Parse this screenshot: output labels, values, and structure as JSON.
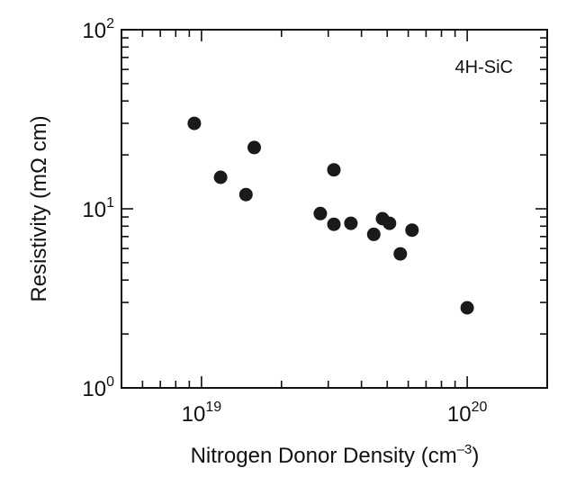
{
  "chart_data": {
    "type": "scatter",
    "xscale": "log",
    "yscale": "log",
    "xlim": [
      5e+18,
      2e+20
    ],
    "ylim": [
      1,
      100
    ],
    "xlabel": "Nitrogen Donor Density (cm",
    "xlabel_sup": "–3",
    "xlabel_close": ")",
    "ylabel": "Resistivity (mΩ cm)",
    "annotation": "4H-SiC",
    "grid": false,
    "x_ticks": [
      {
        "value": 1e+19,
        "base": "10",
        "exp": "19"
      },
      {
        "value": 1e+20,
        "base": "10",
        "exp": "20"
      }
    ],
    "y_ticks": [
      {
        "value": 1,
        "base": "10",
        "exp": "0"
      },
      {
        "value": 10,
        "base": "10",
        "exp": "1"
      },
      {
        "value": 100,
        "base": "10",
        "exp": "2"
      }
    ],
    "points": [
      {
        "x": 9.4e+18,
        "y": 30
      },
      {
        "x": 1.18e+19,
        "y": 15
      },
      {
        "x": 1.47e+19,
        "y": 12
      },
      {
        "x": 1.58e+19,
        "y": 22
      },
      {
        "x": 2.8e+19,
        "y": 9.4
      },
      {
        "x": 3.15e+19,
        "y": 8.2
      },
      {
        "x": 3.15e+19,
        "y": 16.5
      },
      {
        "x": 3.65e+19,
        "y": 8.3
      },
      {
        "x": 4.45e+19,
        "y": 7.2
      },
      {
        "x": 4.8e+19,
        "y": 8.8
      },
      {
        "x": 5.1e+19,
        "y": 8.3
      },
      {
        "x": 5.6e+19,
        "y": 5.6
      },
      {
        "x": 6.2e+19,
        "y": 7.6
      },
      {
        "x": 1e+20,
        "y": 2.8
      }
    ]
  }
}
